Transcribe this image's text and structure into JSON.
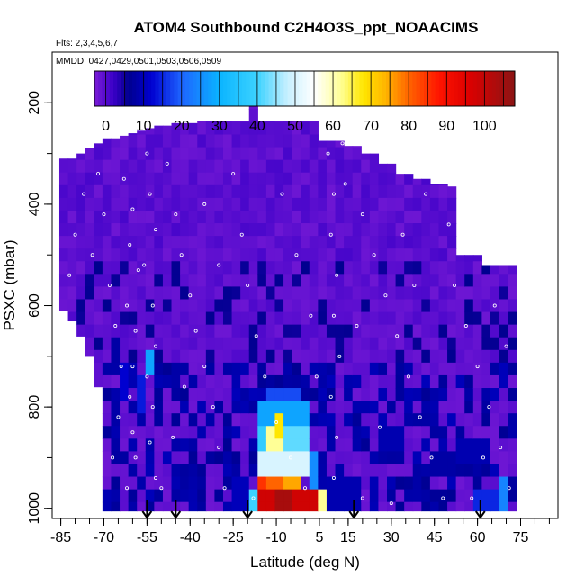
{
  "chart_data": {
    "type": "heatmap",
    "title": "ATOM4 Southbound C2H4O3S_ppt_NOAACIMS",
    "flights_note": "Flts: 2,3,4,5,6,7",
    "dates_note": "MMDD: 0427,0429,0501,0503,0506,0509",
    "xlabel": "Latitude (deg N)",
    "ylabel": "PSXC (mbar)",
    "xlim": [
      -88,
      88
    ],
    "ylim": [
      1020,
      100
    ],
    "x_ticks": [
      -85,
      -70,
      -55,
      -40,
      -25,
      -10,
      5,
      15,
      30,
      45,
      60,
      75
    ],
    "x_tick_labels": [
      "-85",
      "-70",
      "-55",
      "-40",
      "-25",
      "-10",
      "5",
      "15",
      "30",
      "45",
      "60",
      "75"
    ],
    "y_ticks": [
      200,
      400,
      600,
      800,
      1000
    ],
    "y_tick_labels": [
      "200",
      "400",
      "600",
      "800",
      "1000"
    ],
    "colorbar": {
      "min": -3,
      "max": 108,
      "ticks": [
        0,
        10,
        20,
        30,
        40,
        50,
        60,
        70,
        80,
        90,
        100
      ],
      "tick_labels": [
        "0",
        "10",
        "20",
        "30",
        "40",
        "50",
        "60",
        "70",
        "80",
        "90",
        "100"
      ],
      "stops": [
        [
          -3,
          "#7a1cd6"
        ],
        [
          2,
          "#3b00c8"
        ],
        [
          6,
          "#00008f"
        ],
        [
          12,
          "#0000d0"
        ],
        [
          20,
          "#1e64ff"
        ],
        [
          30,
          "#0ab4ff"
        ],
        [
          40,
          "#3cd2ff"
        ],
        [
          48,
          "#c8f0ff"
        ],
        [
          55,
          "#ffffff"
        ],
        [
          62,
          "#ffff96"
        ],
        [
          68,
          "#ffe600"
        ],
        [
          74,
          "#ffb400"
        ],
        [
          80,
          "#ff6400"
        ],
        [
          88,
          "#ff1400"
        ],
        [
          96,
          "#dc0000"
        ],
        [
          108,
          "#8c1414"
        ]
      ]
    },
    "pressure_levels": [
      175,
      200,
      225,
      250,
      275,
      300,
      325,
      350,
      375,
      400,
      425,
      450,
      475,
      500,
      525,
      550,
      575,
      600,
      625,
      650,
      675,
      700,
      725,
      750,
      775,
      800,
      825,
      850,
      875,
      900,
      925,
      950,
      975,
      1000
    ],
    "columns": [
      {
        "lat": -84,
        "ptop": 310,
        "pbot": 610
      },
      {
        "lat": -81,
        "ptop": 310,
        "pbot": 630
      },
      {
        "lat": -78,
        "ptop": 300,
        "pbot": 660
      },
      {
        "lat": -75,
        "ptop": 290,
        "pbot": 700
      },
      {
        "lat": -72,
        "ptop": 280,
        "pbot": 760
      },
      {
        "lat": -69,
        "ptop": 270,
        "pbot": 1005
      },
      {
        "lat": -66,
        "ptop": 270,
        "pbot": 1005
      },
      {
        "lat": -63,
        "ptop": 265,
        "pbot": 1005
      },
      {
        "lat": -60,
        "ptop": 260,
        "pbot": 1005
      },
      {
        "lat": -57,
        "ptop": 255,
        "pbot": 1005
      },
      {
        "lat": -54,
        "ptop": 250,
        "pbot": 1005
      },
      {
        "lat": -51,
        "ptop": 245,
        "pbot": 1005
      },
      {
        "lat": -48,
        "ptop": 245,
        "pbot": 1005
      },
      {
        "lat": -45,
        "ptop": 240,
        "pbot": 1005
      },
      {
        "lat": -42,
        "ptop": 240,
        "pbot": 1005
      },
      {
        "lat": -39,
        "ptop": 240,
        "pbot": 1005
      },
      {
        "lat": -36,
        "ptop": 235,
        "pbot": 1005
      },
      {
        "lat": -33,
        "ptop": 235,
        "pbot": 1005
      },
      {
        "lat": -30,
        "ptop": 235,
        "pbot": 1005
      },
      {
        "lat": -27,
        "ptop": 235,
        "pbot": 1005
      },
      {
        "lat": -24,
        "ptop": 235,
        "pbot": 1005
      },
      {
        "lat": -21,
        "ptop": 235,
        "pbot": 1005
      },
      {
        "lat": -18,
        "ptop": 160,
        "pbot": 1005
      },
      {
        "lat": -15,
        "ptop": 235,
        "pbot": 1005
      },
      {
        "lat": -12,
        "ptop": 235,
        "pbot": 1005
      },
      {
        "lat": -9,
        "ptop": 235,
        "pbot": 1005
      },
      {
        "lat": -6,
        "ptop": 235,
        "pbot": 1005
      },
      {
        "lat": -3,
        "ptop": 235,
        "pbot": 1005
      },
      {
        "lat": 0,
        "ptop": 235,
        "pbot": 1005
      },
      {
        "lat": 3,
        "ptop": 235,
        "pbot": 1005
      },
      {
        "lat": 6,
        "ptop": 275,
        "pbot": 1005
      },
      {
        "lat": 9,
        "ptop": 275,
        "pbot": 1005
      },
      {
        "lat": 12,
        "ptop": 275,
        "pbot": 1005
      },
      {
        "lat": 15,
        "ptop": 285,
        "pbot": 1005
      },
      {
        "lat": 18,
        "ptop": 285,
        "pbot": 1005
      },
      {
        "lat": 21,
        "ptop": 300,
        "pbot": 1005
      },
      {
        "lat": 24,
        "ptop": 300,
        "pbot": 1005
      },
      {
        "lat": 27,
        "ptop": 320,
        "pbot": 1005
      },
      {
        "lat": 30,
        "ptop": 320,
        "pbot": 1005
      },
      {
        "lat": 33,
        "ptop": 340,
        "pbot": 1005
      },
      {
        "lat": 36,
        "ptop": 340,
        "pbot": 1005
      },
      {
        "lat": 39,
        "ptop": 350,
        "pbot": 1005
      },
      {
        "lat": 42,
        "ptop": 350,
        "pbot": 1005
      },
      {
        "lat": 45,
        "ptop": 360,
        "pbot": 1005
      },
      {
        "lat": 48,
        "ptop": 360,
        "pbot": 1005
      },
      {
        "lat": 51,
        "ptop": 365,
        "pbot": 1005
      },
      {
        "lat": 54,
        "ptop": 500,
        "pbot": 1005
      },
      {
        "lat": 57,
        "ptop": 500,
        "pbot": 1005
      },
      {
        "lat": 60,
        "ptop": 500,
        "pbot": 1005
      },
      {
        "lat": 63,
        "ptop": 520,
        "pbot": 1005
      },
      {
        "lat": 66,
        "ptop": 520,
        "pbot": 1005
      },
      {
        "lat": 69,
        "ptop": 520,
        "pbot": 1005
      },
      {
        "lat": 72,
        "ptop": 520,
        "pbot": 1005
      }
    ],
    "enhancements": [
      {
        "lat": [
          -15,
          5
        ],
        "p": [
          950,
          1000
        ],
        "value": 98
      },
      {
        "lat": [
          -9,
          -3
        ],
        "p": [
          950,
          1000
        ],
        "value": 104
      },
      {
        "lat": [
          -15,
          -12
        ],
        "p": [
          925,
          1000
        ],
        "value": 85
      },
      {
        "lat": [
          -12,
          -6
        ],
        "p": [
          925,
          950
        ],
        "value": 80
      },
      {
        "lat": [
          -6,
          0
        ],
        "p": [
          925,
          950
        ],
        "value": 75
      },
      {
        "lat": [
          3,
          6
        ],
        "p": [
          950,
          1000
        ],
        "value": 70
      },
      {
        "lat": [
          6,
          9
        ],
        "p": [
          950,
          1000
        ],
        "value": 62
      },
      {
        "lat": [
          -18,
          -15
        ],
        "p": [
          950,
          1000
        ],
        "value": 40
      },
      {
        "lat": [
          -15,
          3
        ],
        "p": [
          875,
          925
        ],
        "value": 50
      },
      {
        "lat": [
          -12,
          -6
        ],
        "p": [
          825,
          875
        ],
        "value": 62
      },
      {
        "lat": [
          -9,
          -6
        ],
        "p": [
          800,
          850
        ],
        "value": 68
      },
      {
        "lat": [
          -15,
          -12
        ],
        "p": [
          825,
          875
        ],
        "value": 38
      },
      {
        "lat": [
          -6,
          3
        ],
        "p": [
          825,
          875
        ],
        "value": 42
      },
      {
        "lat": [
          -15,
          3
        ],
        "p": [
          775,
          825
        ],
        "value": 28
      },
      {
        "lat": [
          -12,
          0
        ],
        "p": [
          750,
          775
        ],
        "value": 18
      },
      {
        "lat": [
          3,
          6
        ],
        "p": [
          875,
          950
        ],
        "value": 25
      },
      {
        "lat": [
          69,
          72
        ],
        "p": [
          925,
          1000
        ],
        "value": 24
      },
      {
        "lat": [
          60,
          69
        ],
        "p": [
          950,
          1000
        ],
        "value": 15
      },
      {
        "lat": [
          -54,
          -51
        ],
        "p": [
          675,
          725
        ],
        "value": 28
      },
      {
        "lat": [
          -57,
          -54
        ],
        "p": [
          725,
          800
        ],
        "value": 14
      },
      {
        "lat": [
          -63,
          -60
        ],
        "p": [
          700,
          775
        ],
        "value": 12
      },
      {
        "lat": [
          -66,
          -63
        ],
        "p": [
          650,
          700
        ],
        "value": 8
      },
      {
        "lat": [
          -24,
          -18
        ],
        "p": [
          925,
          1000
        ],
        "value": 10
      },
      {
        "lat": [
          9,
          21
        ],
        "p": [
          925,
          1000
        ],
        "value": 9
      },
      {
        "lat": [
          27,
          36
        ],
        "p": [
          825,
          875
        ],
        "value": 9
      },
      {
        "lat": [
          39,
          45
        ],
        "p": [
          800,
          825
        ],
        "value": 8
      },
      {
        "lat": [
          54,
          66
        ],
        "p": [
          850,
          900
        ],
        "value": 9
      },
      {
        "lat": [
          45,
          54
        ],
        "p": [
          875,
          925
        ],
        "value": 8
      }
    ],
    "sample_points": [
      {
        "lat": -63,
        "p": 350
      },
      {
        "lat": -60,
        "p": 410
      },
      {
        "lat": -61,
        "p": 480
      },
      {
        "lat": -58,
        "p": 530
      },
      {
        "lat": -62,
        "p": 600
      },
      {
        "lat": -59,
        "p": 650
      },
      {
        "lat": -60,
        "p": 720
      },
      {
        "lat": -61,
        "p": 780
      },
      {
        "lat": -60,
        "p": 850
      },
      {
        "lat": -59,
        "p": 900
      },
      {
        "lat": -62,
        "p": 960
      },
      {
        "lat": -55,
        "p": 300
      },
      {
        "lat": -54,
        "p": 380
      },
      {
        "lat": -52,
        "p": 450
      },
      {
        "lat": -56,
        "p": 520
      },
      {
        "lat": -53,
        "p": 600
      },
      {
        "lat": -52,
        "p": 680
      },
      {
        "lat": -55,
        "p": 740
      },
      {
        "lat": -53,
        "p": 800
      },
      {
        "lat": -54,
        "p": 870
      },
      {
        "lat": -52,
        "p": 940
      },
      {
        "lat": -48,
        "p": 320
      },
      {
        "lat": -45,
        "p": 420
      },
      {
        "lat": -43,
        "p": 500
      },
      {
        "lat": -40,
        "p": 580
      },
      {
        "lat": -38,
        "p": 650
      },
      {
        "lat": -35,
        "p": 720
      },
      {
        "lat": -32,
        "p": 800
      },
      {
        "lat": -30,
        "p": 880
      },
      {
        "lat": -28,
        "p": 960
      },
      {
        "lat": -72,
        "p": 340
      },
      {
        "lat": -70,
        "p": 420
      },
      {
        "lat": -74,
        "p": 500
      },
      {
        "lat": -68,
        "p": 560
      },
      {
        "lat": -66,
        "p": 640
      },
      {
        "lat": -64,
        "p": 720
      },
      {
        "lat": -65,
        "p": 820
      },
      {
        "lat": -67,
        "p": 900
      },
      {
        "lat": -77,
        "p": 380
      },
      {
        "lat": -80,
        "p": 460
      },
      {
        "lat": -82,
        "p": 540
      },
      {
        "lat": -25,
        "p": 340
      },
      {
        "lat": -22,
        "p": 460
      },
      {
        "lat": -20,
        "p": 560
      },
      {
        "lat": -17,
        "p": 660
      },
      {
        "lat": -14,
        "p": 740
      },
      {
        "lat": -10,
        "p": 830
      },
      {
        "lat": -5,
        "p": 900
      },
      {
        "lat": 0,
        "p": 960
      },
      {
        "lat": 8,
        "p": 300
      },
      {
        "lat": 10,
        "p": 380
      },
      {
        "lat": 9,
        "p": 460
      },
      {
        "lat": 11,
        "p": 540
      },
      {
        "lat": 10,
        "p": 620
      },
      {
        "lat": 12,
        "p": 700
      },
      {
        "lat": 9,
        "p": 780
      },
      {
        "lat": 11,
        "p": 860
      },
      {
        "lat": 10,
        "p": 940
      },
      {
        "lat": 13,
        "p": 280
      },
      {
        "lat": 14,
        "p": 360
      },
      {
        "lat": 20,
        "p": 420
      },
      {
        "lat": 24,
        "p": 500
      },
      {
        "lat": 28,
        "p": 580
      },
      {
        "lat": 32,
        "p": 660
      },
      {
        "lat": 36,
        "p": 740
      },
      {
        "lat": 40,
        "p": 820
      },
      {
        "lat": 44,
        "p": 900
      },
      {
        "lat": 48,
        "p": 980
      },
      {
        "lat": 52,
        "p": 560
      },
      {
        "lat": 56,
        "p": 640
      },
      {
        "lat": 60,
        "p": 720
      },
      {
        "lat": 64,
        "p": 800
      },
      {
        "lat": 68,
        "p": 880
      },
      {
        "lat": 71,
        "p": 960
      },
      {
        "lat": 66,
        "p": 600
      },
      {
        "lat": 70,
        "p": 680
      },
      {
        "lat": 50,
        "p": 440
      },
      {
        "lat": 42,
        "p": 380
      },
      {
        "lat": 34,
        "p": 460
      },
      {
        "lat": 18,
        "p": 640
      },
      {
        "lat": -35,
        "p": 400
      },
      {
        "lat": -30,
        "p": 520
      },
      {
        "lat": -42,
        "p": 760
      },
      {
        "lat": -46,
        "p": 860
      },
      {
        "lat": -50,
        "p": 960
      },
      {
        "lat": -8,
        "p": 380
      },
      {
        "lat": -3,
        "p": 500
      },
      {
        "lat": 2,
        "p": 620
      },
      {
        "lat": 4,
        "p": 740
      },
      {
        "lat": -18,
        "p": 980
      },
      {
        "lat": 20,
        "p": 980
      },
      {
        "lat": 30,
        "p": 990
      },
      {
        "lat": 58,
        "p": 980
      },
      {
        "lat": 38,
        "p": 560
      },
      {
        "lat": 26,
        "p": 840
      },
      {
        "lat": 62,
        "p": 900
      }
    ],
    "flight_markers_lat": [
      -55,
      -45,
      -20,
      17,
      61
    ]
  }
}
